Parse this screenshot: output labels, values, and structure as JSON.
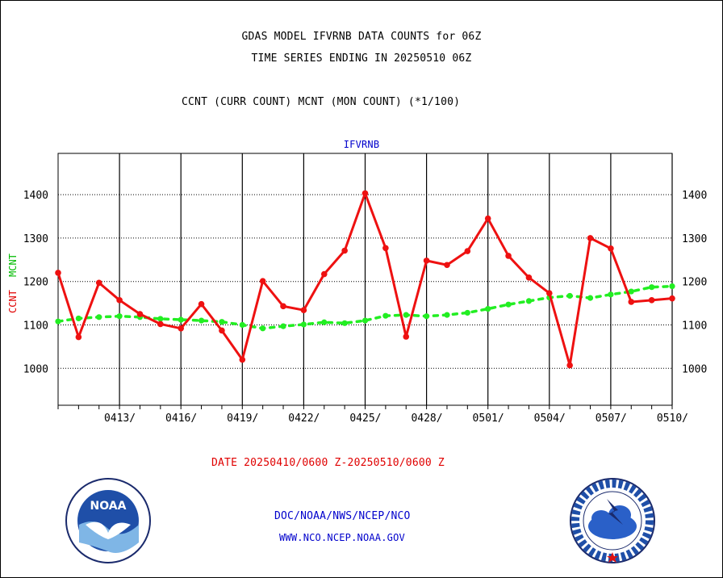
{
  "header": {
    "title_line1": "GDAS MODEL IFVRNB DATA COUNTS for 06Z",
    "title_line2": "TIME SERIES ENDING IN 20250510 06Z",
    "subtitle": "CCNT (CURR COUNT) MCNT (MON COUNT) (*1/100)",
    "panel_label": "IFVRNB"
  },
  "footer": {
    "date_range": "DATE 20250410/0600 Z-20250510/0600 Z",
    "org_line1": "DOC/NOAA/NWS/NCEP/NCO",
    "org_line2": "WWW.NCO.NCEP.NOAA.GOV",
    "logo_left": "NOAA",
    "logo_right": "NATIONAL WEATHER SERVICE"
  },
  "chart_data": {
    "type": "line",
    "title": "IFVRNB",
    "ylabel": "CCNT  MCNT",
    "ylim": [
      915,
      1495
    ],
    "yticks": [
      1000,
      1100,
      1200,
      1300,
      1400
    ],
    "xticks": [
      "0413/",
      "0416/",
      "0419/",
      "0422/",
      "0425/",
      "0428/",
      "0501/",
      "0504/",
      "0507/",
      "0510/"
    ],
    "grid": true,
    "colors": {
      "ccnt": "#ee1111",
      "mcnt": "#22ee22"
    },
    "x": [
      "0410",
      "0411",
      "0412",
      "0413",
      "0414",
      "0415",
      "0416",
      "0417",
      "0418",
      "0419",
      "0420",
      "0421",
      "0422",
      "0423",
      "0424",
      "0425",
      "0426",
      "0427",
      "0428",
      "0429",
      "0430",
      "0501",
      "0502",
      "0503",
      "0504",
      "0505",
      "0506",
      "0507",
      "0508",
      "0509",
      "0510"
    ],
    "series": [
      {
        "name": "CCNT",
        "values": [
          1220,
          1072,
          1197,
          1157,
          1125,
          1102,
          1092,
          1148,
          1087,
          1020,
          1201,
          1143,
          1134,
          1217,
          1271,
          1403,
          1277,
          1073,
          1248,
          1238,
          1270,
          1345,
          1259,
          1209,
          1173,
          1007,
          1300,
          1276,
          1153,
          1157,
          1161
        ]
      },
      {
        "name": "MCNT",
        "values": [
          1108,
          1115,
          1118,
          1120,
          1118,
          1114,
          1112,
          1110,
          1107,
          1100,
          1092,
          1097,
          1101,
          1106,
          1104,
          1110,
          1121,
          1123,
          1120,
          1123,
          1128,
          1137,
          1147,
          1155,
          1163,
          1167,
          1162,
          1170,
          1177,
          1187,
          1189
        ]
      }
    ]
  }
}
